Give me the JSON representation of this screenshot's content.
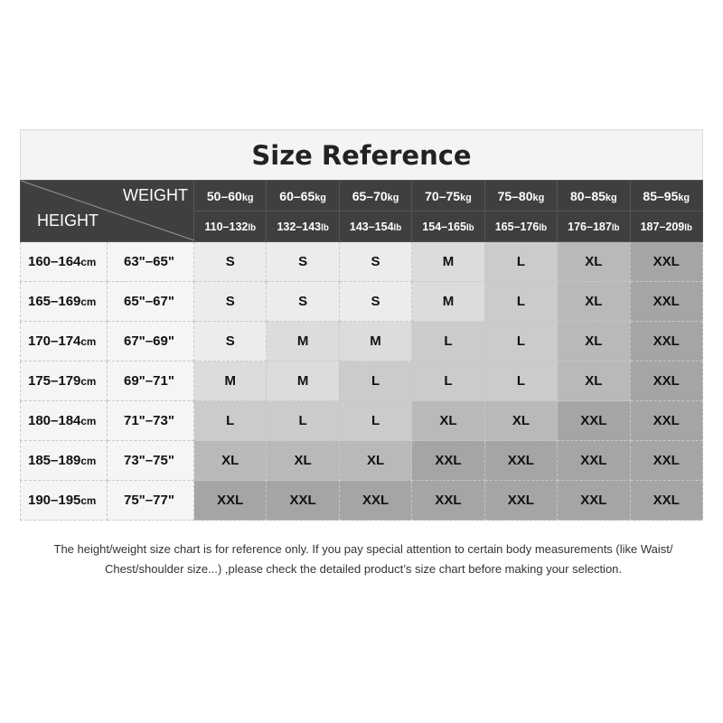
{
  "title": "Size Reference",
  "header": {
    "weight_label": "WEIGHT",
    "height_label": "HEIGHT",
    "kg": [
      [
        "50–60",
        "kg"
      ],
      [
        "60–65",
        "kg"
      ],
      [
        "65–70",
        "kg"
      ],
      [
        "70–75",
        "kg"
      ],
      [
        "75–80",
        "kg"
      ],
      [
        "80–85",
        "kg"
      ],
      [
        "85–95",
        "kg"
      ]
    ],
    "lb": [
      [
        "110–132",
        "lb"
      ],
      [
        "132–143",
        "lb"
      ],
      [
        "143–154",
        "lb"
      ],
      [
        "154–165",
        "lb"
      ],
      [
        "165–176",
        "lb"
      ],
      [
        "176–187",
        "lb"
      ],
      [
        "187–209",
        "lb"
      ]
    ]
  },
  "rows": [
    {
      "cm": "160–164",
      "unit": "cm",
      "inch": "63\"–65\"",
      "sizes": [
        "S",
        "S",
        "S",
        "M",
        "L",
        "XL",
        "XXL"
      ]
    },
    {
      "cm": "165–169",
      "unit": "cm",
      "inch": "65\"–67\"",
      "sizes": [
        "S",
        "S",
        "S",
        "M",
        "L",
        "XL",
        "XXL"
      ]
    },
    {
      "cm": "170–174",
      "unit": "cm",
      "inch": "67\"–69\"",
      "sizes": [
        "S",
        "M",
        "M",
        "L",
        "L",
        "XL",
        "XXL"
      ]
    },
    {
      "cm": "175–179",
      "unit": "cm",
      "inch": "69\"–71\"",
      "sizes": [
        "M",
        "M",
        "L",
        "L",
        "L",
        "XL",
        "XXL"
      ]
    },
    {
      "cm": "180–184",
      "unit": "cm",
      "inch": "71\"–73\"",
      "sizes": [
        "L",
        "L",
        "L",
        "XL",
        "XL",
        "XXL",
        "XXL"
      ]
    },
    {
      "cm": "185–189",
      "unit": "cm",
      "inch": "73\"–75\"",
      "sizes": [
        "XL",
        "XL",
        "XL",
        "XXL",
        "XXL",
        "XXL",
        "XXL"
      ]
    },
    {
      "cm": "190–195",
      "unit": "cm",
      "inch": "75\"–77\"",
      "sizes": [
        "XXL",
        "XXL",
        "XXL",
        "XXL",
        "XXL",
        "XXL",
        "XXL"
      ]
    }
  ],
  "size_colors": {
    "S": "#ececec",
    "M": "#dcdcdc",
    "L": "#cbcbcb",
    "XL": "#b9b9b9",
    "XXL": "#a5a5a5"
  },
  "note": "The height/weight size chart is for reference only. If you pay special attention to certain body measurements  (like Waist/ Chest/shoulder size...)  ,please check the detailed product’s size chart before making your selection."
}
